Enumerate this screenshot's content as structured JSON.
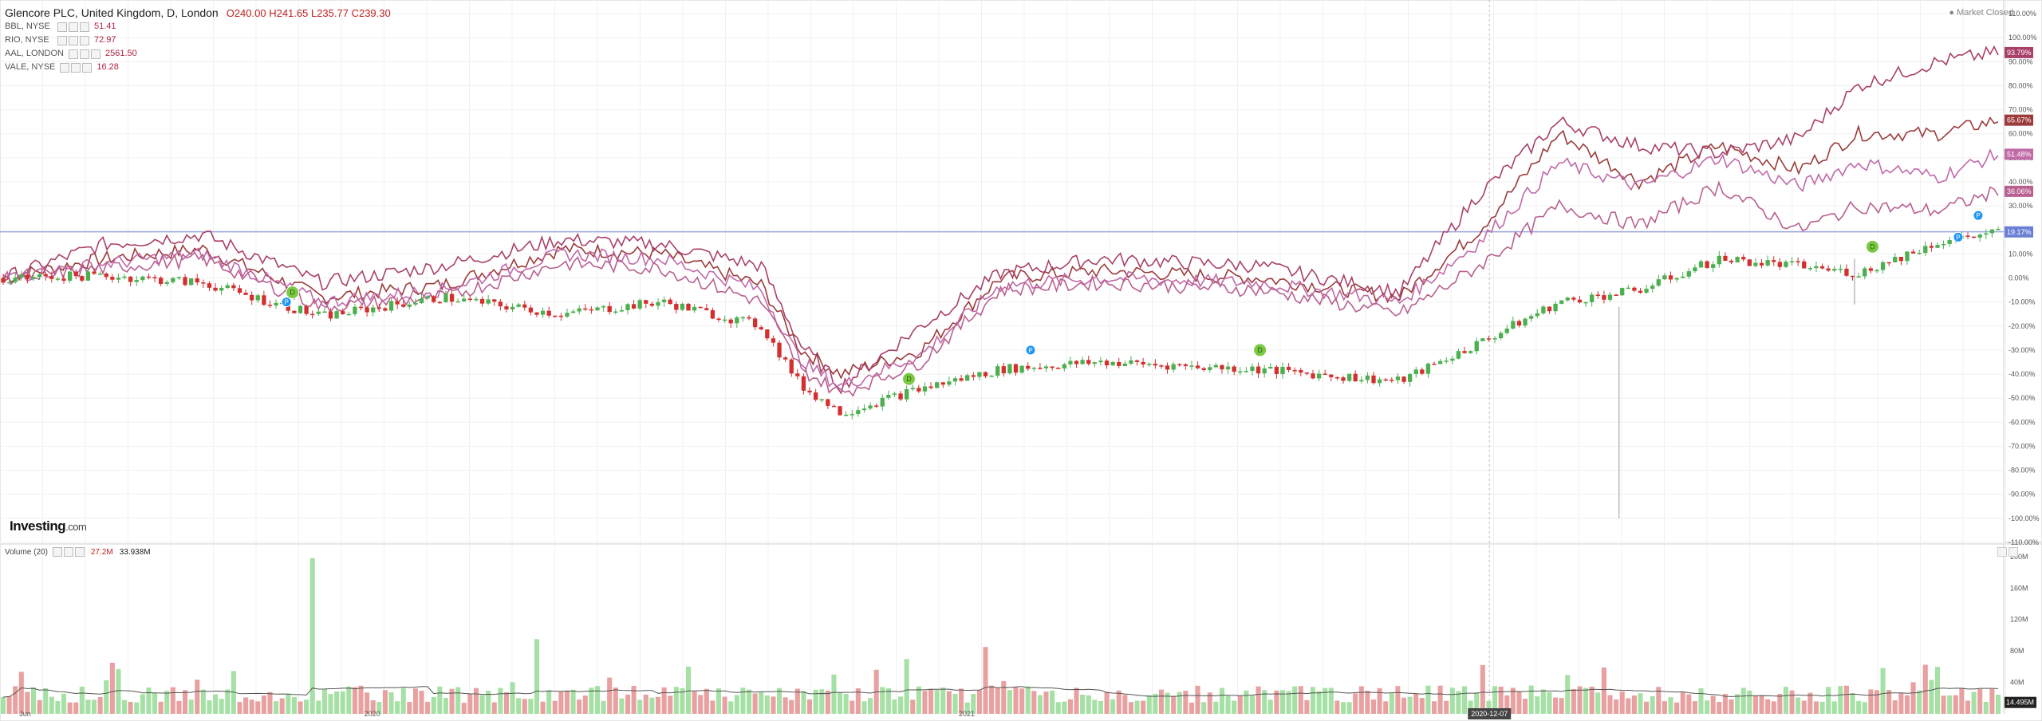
{
  "header": {
    "title": "Glencore PLC, United Kingdom, D, London",
    "ohlc": "O240.00  H241.65  L235.77  C239.30",
    "market_status": "Market Closed"
  },
  "compare": [
    {
      "symbol": "BBL, NYSE",
      "value": "51.41"
    },
    {
      "symbol": "RIO, NYSE",
      "value": "72.97"
    },
    {
      "symbol": "AAL, LONDON",
      "value": "2561.50"
    },
    {
      "symbol": "VALE, NYSE",
      "value": "16.28"
    }
  ],
  "volume_legend": {
    "label": "Volume (20)",
    "value": "27.2M",
    "ma": "33.938M"
  },
  "logo": {
    "main": "Investing",
    "suffix": ".com"
  },
  "colors": {
    "up": "#4caf50",
    "down": "#d32f2f",
    "vol_up": "#a5e0a5",
    "vol_down": "#e8a0a0",
    "compare": [
      "#9b3b3b",
      "#a8406a",
      "#c06aa8",
      "#b86090"
    ],
    "crosshair": "#6b7fd4",
    "ma": "#555555",
    "badge_dividend": "#7ac943",
    "badge_price": "#2196f3"
  },
  "chart_data": {
    "type": "line",
    "x_ticks": [
      "Jun",
      "2020",
      "2020-12-07",
      "2021"
    ],
    "y_ticks": [
      "110.00%",
      "100.00%",
      "90.00%",
      "80.00%",
      "70.00%",
      "60.00%",
      "50.00%",
      "40.00%",
      "30.00%",
      "20.00%",
      "10.00%",
      "0.00%",
      "-10.00%",
      "-20.00%",
      "-30.00%",
      "-40.00%",
      "-50.00%",
      "-60.00%",
      "-70.00%",
      "-80.00%",
      "-90.00%",
      "-100.00%",
      "-110.00%"
    ],
    "ylim": [
      -110,
      115
    ],
    "series": [
      {
        "name": "BBL, NYSE",
        "end_label": "65.67%",
        "points": [
          [
            0,
            0
          ],
          [
            0.05,
            8
          ],
          [
            0.1,
            12
          ],
          [
            0.16,
            -8
          ],
          [
            0.22,
            -3
          ],
          [
            0.28,
            12
          ],
          [
            0.33,
            10
          ],
          [
            0.38,
            -3
          ],
          [
            0.4,
            -30
          ],
          [
            0.42,
            -40
          ],
          [
            0.46,
            -30
          ],
          [
            0.5,
            0
          ],
          [
            0.55,
            3
          ],
          [
            0.63,
            0
          ],
          [
            0.7,
            -8
          ],
          [
            0.74,
            20
          ],
          [
            0.78,
            60
          ],
          [
            0.82,
            40
          ],
          [
            0.86,
            55
          ],
          [
            0.9,
            45
          ],
          [
            0.93,
            60
          ],
          [
            0.97,
            60
          ],
          [
            1,
            65.67
          ]
        ]
      },
      {
        "name": "RIO, NYSE",
        "end_label": "93.79%",
        "points": [
          [
            0,
            0
          ],
          [
            0.05,
            14
          ],
          [
            0.1,
            18
          ],
          [
            0.16,
            -2
          ],
          [
            0.22,
            5
          ],
          [
            0.28,
            16
          ],
          [
            0.33,
            14
          ],
          [
            0.38,
            5
          ],
          [
            0.4,
            -28
          ],
          [
            0.42,
            -45
          ],
          [
            0.46,
            -20
          ],
          [
            0.5,
            2
          ],
          [
            0.55,
            8
          ],
          [
            0.63,
            5
          ],
          [
            0.7,
            -6
          ],
          [
            0.74,
            35
          ],
          [
            0.78,
            65
          ],
          [
            0.82,
            55
          ],
          [
            0.86,
            52
          ],
          [
            0.9,
            58
          ],
          [
            0.93,
            80
          ],
          [
            0.97,
            90
          ],
          [
            1,
            93.79
          ]
        ]
      },
      {
        "name": "AAL, LONDON",
        "end_label": "51.48%",
        "points": [
          [
            0,
            0
          ],
          [
            0.05,
            6
          ],
          [
            0.1,
            10
          ],
          [
            0.16,
            -10
          ],
          [
            0.22,
            -5
          ],
          [
            0.28,
            10
          ],
          [
            0.33,
            8
          ],
          [
            0.38,
            -5
          ],
          [
            0.4,
            -35
          ],
          [
            0.42,
            -45
          ],
          [
            0.46,
            -32
          ],
          [
            0.5,
            -3
          ],
          [
            0.55,
            0
          ],
          [
            0.63,
            -2
          ],
          [
            0.7,
            -10
          ],
          [
            0.74,
            15
          ],
          [
            0.78,
            48
          ],
          [
            0.82,
            38
          ],
          [
            0.86,
            50
          ],
          [
            0.9,
            38
          ],
          [
            0.93,
            48
          ],
          [
            0.97,
            42
          ],
          [
            1,
            51.48
          ]
        ]
      },
      {
        "name": "VALE, NYSE",
        "end_label": "36.06%",
        "points": [
          [
            0,
            0
          ],
          [
            0.05,
            4
          ],
          [
            0.1,
            8
          ],
          [
            0.16,
            -12
          ],
          [
            0.22,
            -8
          ],
          [
            0.28,
            6
          ],
          [
            0.33,
            4
          ],
          [
            0.38,
            -10
          ],
          [
            0.4,
            -38
          ],
          [
            0.42,
            -48
          ],
          [
            0.46,
            -35
          ],
          [
            0.5,
            -5
          ],
          [
            0.55,
            -2
          ],
          [
            0.63,
            -5
          ],
          [
            0.7,
            -15
          ],
          [
            0.74,
            5
          ],
          [
            0.78,
            30
          ],
          [
            0.82,
            22
          ],
          [
            0.86,
            38
          ],
          [
            0.9,
            20
          ],
          [
            0.93,
            30
          ],
          [
            0.97,
            28
          ],
          [
            1,
            36.06
          ]
        ]
      },
      {
        "name": "Glencore PLC, United Kingdom, D, London",
        "end_label": "19.17%",
        "points": [
          [
            0,
            0
          ],
          [
            0.05,
            1
          ],
          [
            0.1,
            -2
          ],
          [
            0.16,
            -16
          ],
          [
            0.22,
            -8
          ],
          [
            0.28,
            -15
          ],
          [
            0.33,
            -10
          ],
          [
            0.38,
            -20
          ],
          [
            0.4,
            -45
          ],
          [
            0.42,
            -56
          ],
          [
            0.46,
            -46
          ],
          [
            0.5,
            -38
          ],
          [
            0.55,
            -35
          ],
          [
            0.63,
            -38
          ],
          [
            0.7,
            -43
          ],
          [
            0.74,
            -27
          ],
          [
            0.78,
            -10
          ],
          [
            0.82,
            -5
          ],
          [
            0.86,
            8
          ],
          [
            0.9,
            5
          ],
          [
            0.93,
            2
          ],
          [
            0.97,
            15
          ],
          [
            1,
            19.17
          ]
        ]
      }
    ],
    "volume": {
      "ylim": [
        0,
        210
      ],
      "ticks": [
        "200M",
        "160M",
        "120M",
        "80M",
        "40M"
      ],
      "current_label": "14.495M"
    },
    "crosshair": {
      "date": "2020-12-07",
      "value": 19.17
    },
    "events": [
      {
        "type": "D",
        "pos": 0.145,
        "y": -6
      },
      {
        "type": "P",
        "pos": 0.142,
        "y": -10
      },
      {
        "type": "D",
        "pos": 0.454,
        "y": -42
      },
      {
        "type": "P",
        "pos": 0.515,
        "y": -30
      },
      {
        "type": "D",
        "pos": 0.63,
        "y": -30
      },
      {
        "type": "D",
        "pos": 0.937,
        "y": 13
      },
      {
        "type": "P",
        "pos": 0.98,
        "y": 17
      },
      {
        "type": "P",
        "pos": 0.99,
        "y": 26
      }
    ]
  }
}
